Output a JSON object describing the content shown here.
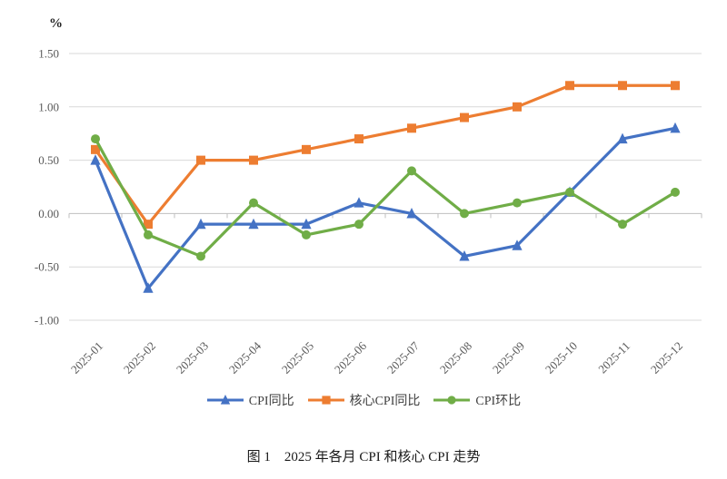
{
  "figure": {
    "caption": "图 1　2025 年各月 CPI 和核心 CPI 走势"
  },
  "chart_data": {
    "type": "line",
    "title": "图 1 2025 年各月 CPI 和核心 CPI 走势",
    "unit": "%",
    "xlabel": "",
    "ylabel": "%",
    "categories": [
      "2025-01",
      "2025-02",
      "2025-03",
      "2025-04",
      "2025-05",
      "2025-06",
      "2025-07",
      "2025-08",
      "2025-09",
      "2025-10",
      "2025-11",
      "2025-12"
    ],
    "series": [
      {
        "name": "CPI同比",
        "marker": "triangle",
        "color": "#4472C4",
        "values": [
          0.5,
          -0.7,
          -0.1,
          -0.1,
          -0.1,
          0.1,
          0.0,
          -0.4,
          -0.3,
          0.2,
          0.7,
          0.8
        ]
      },
      {
        "name": "核心CPI同比",
        "marker": "square",
        "color": "#ED7D31",
        "values": [
          0.6,
          -0.1,
          0.5,
          0.5,
          0.6,
          0.7,
          0.8,
          0.9,
          1.0,
          1.2,
          1.2,
          1.2
        ]
      },
      {
        "name": "CPI环比",
        "marker": "circle",
        "color": "#70AD47",
        "values": [
          0.7,
          -0.2,
          -0.4,
          0.1,
          -0.2,
          -0.1,
          0.4,
          0.0,
          0.1,
          0.2,
          -0.1,
          0.2
        ]
      }
    ],
    "ylim": [
      -1.0,
      1.5
    ],
    "y_ticks": [
      1.5,
      1.0,
      0.5,
      0.0,
      -0.5,
      -1.0
    ],
    "y_tick_labels": [
      "1.50",
      "1.00",
      "0.50",
      "0.00",
      "-0.50",
      "-1.00"
    ],
    "grid": true,
    "legend_position": "bottom",
    "gridline_color": "#D9D9D9",
    "axis_color": "#BFBFBF",
    "label_color": "#595959",
    "legend_text_color": "#404040"
  }
}
